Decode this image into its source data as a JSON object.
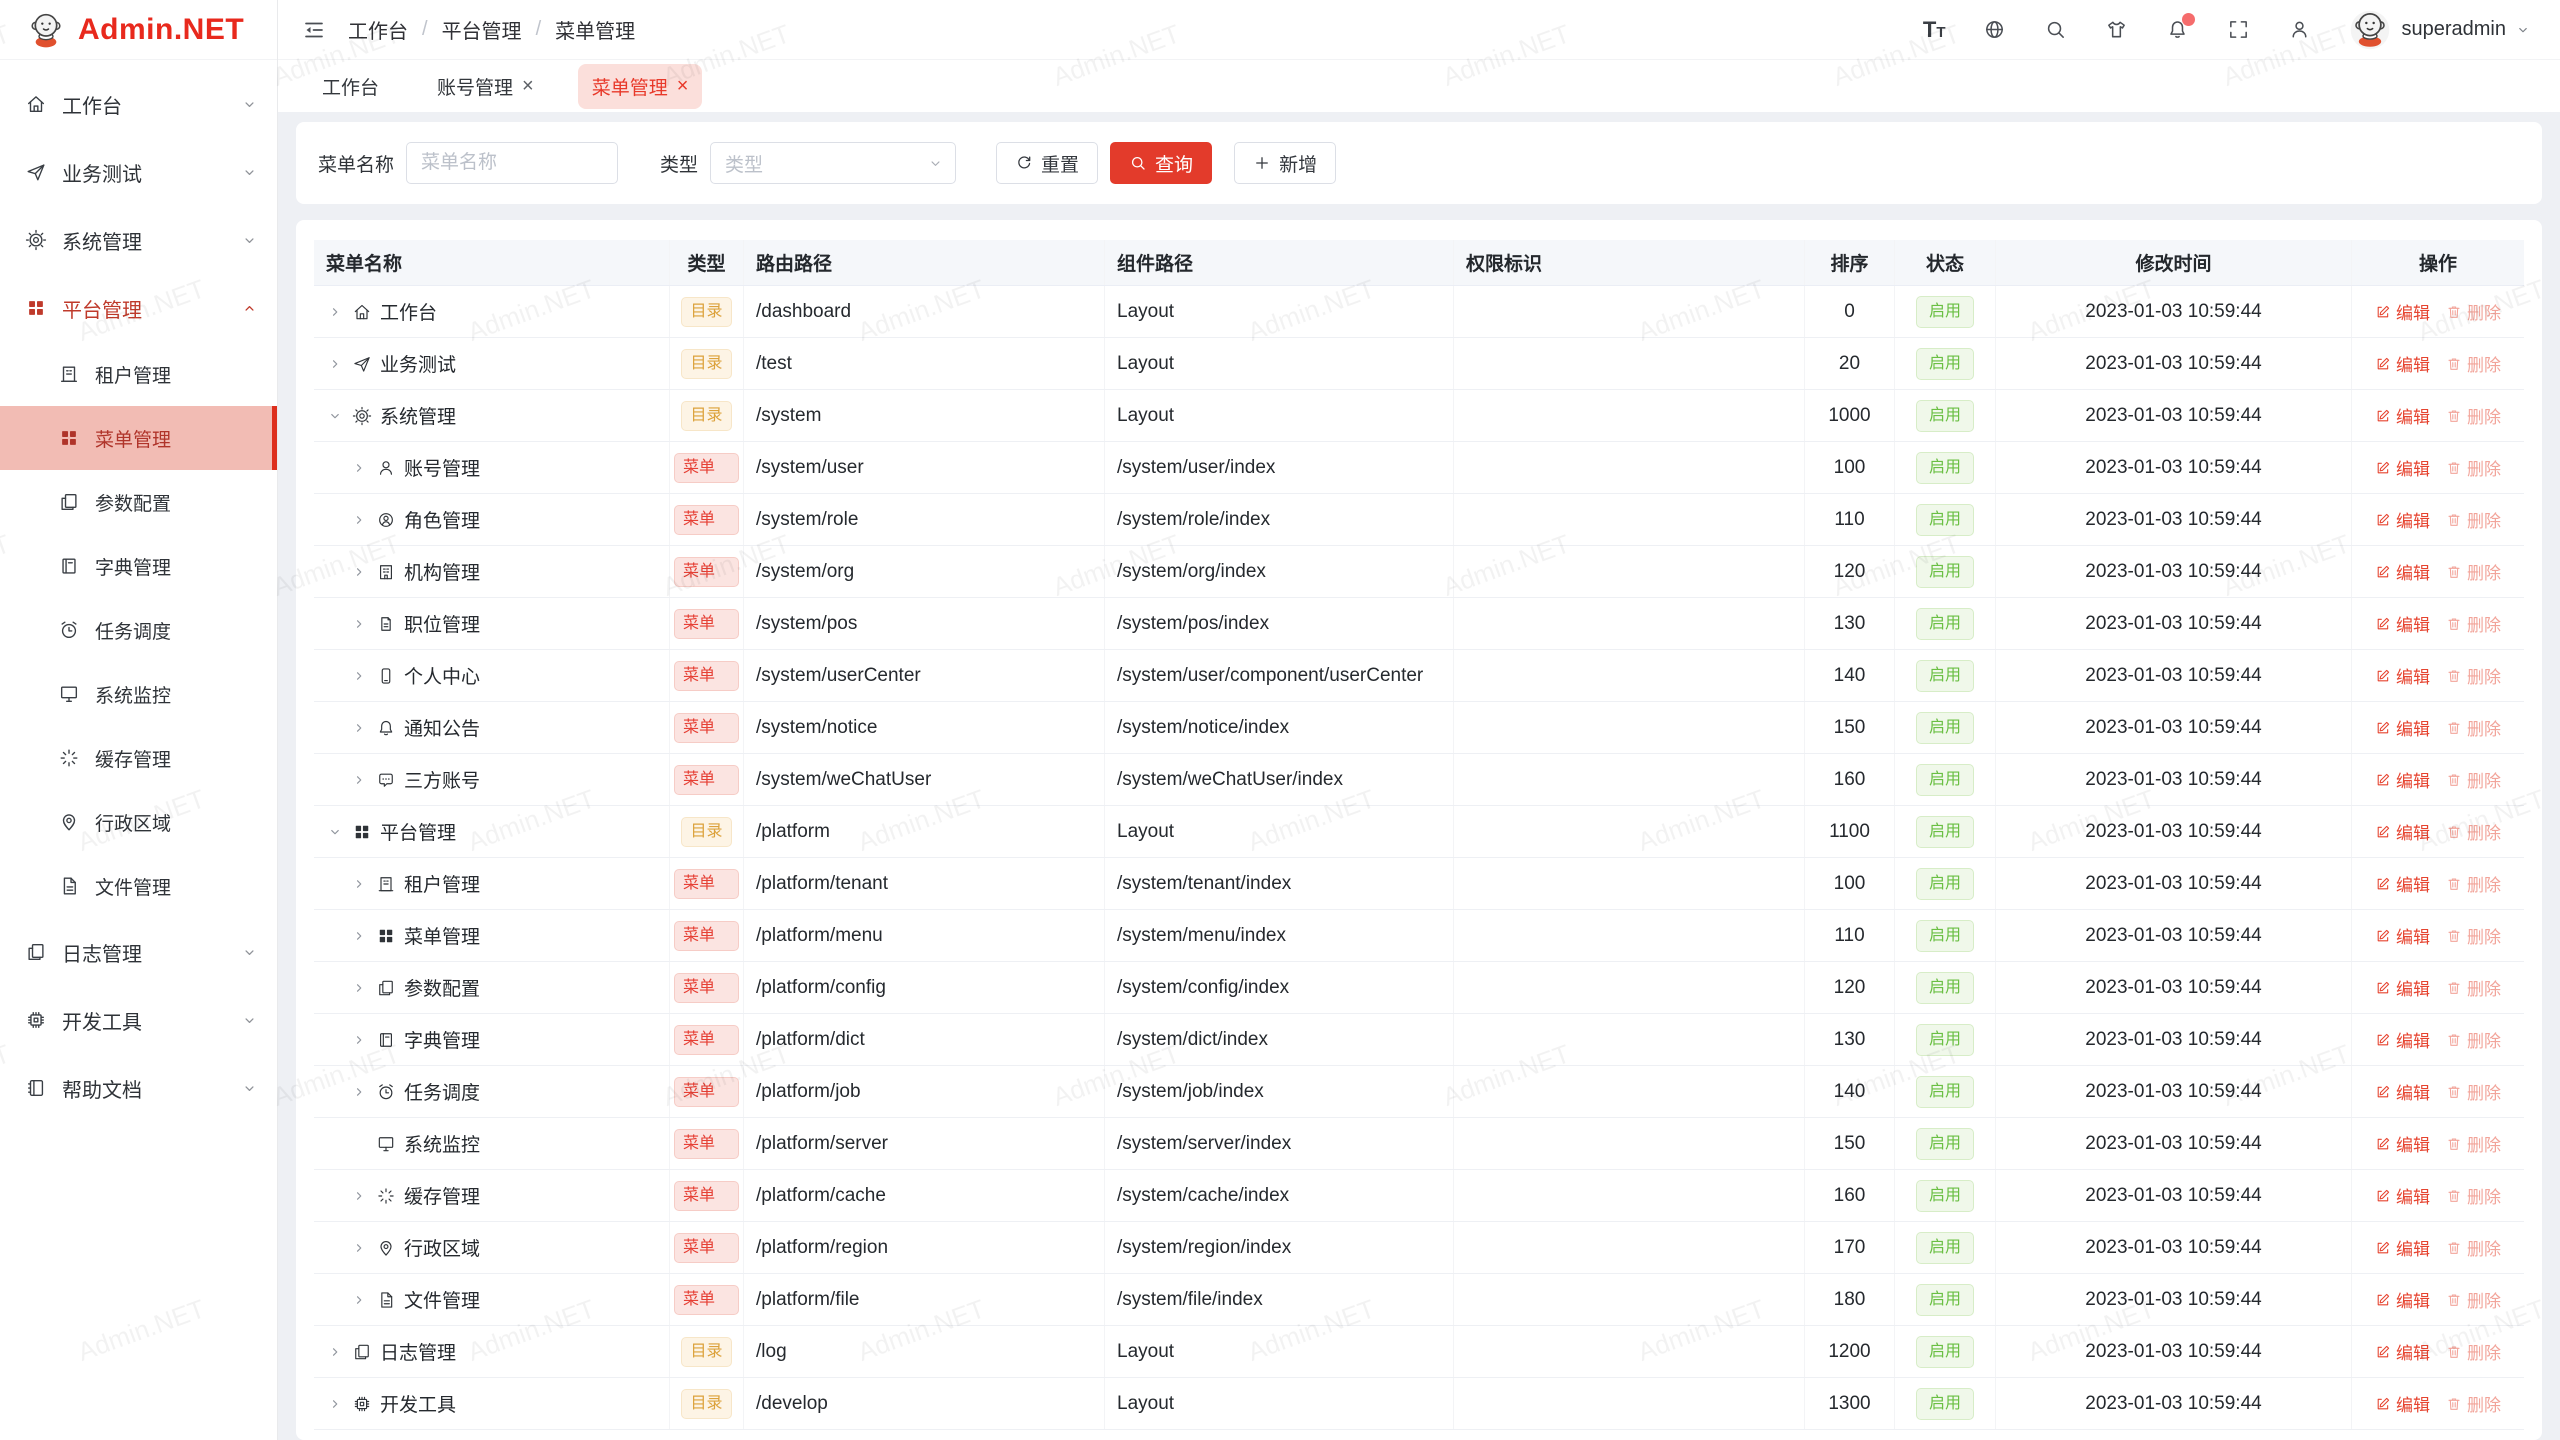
{
  "watermark": "Admin.NET",
  "logo": {
    "title": "Admin.NET"
  },
  "colors": {
    "primary_red": "#e33b2b",
    "sidebar_active_bg": "#f2bcb4",
    "tag_dir_text": "#dca23c",
    "tag_menu_text": "#e64035",
    "status_enabled_green": "#6abf43",
    "active_tab_bg": "#fbdfdb"
  },
  "sidebar": {
    "items": [
      {
        "label": "工作台",
        "icon": "home",
        "level": 1,
        "chevron": "down"
      },
      {
        "label": "业务测试",
        "icon": "send",
        "level": 1,
        "chevron": "down"
      },
      {
        "label": "系统管理",
        "icon": "gear",
        "level": 1,
        "chevron": "down"
      },
      {
        "label": "平台管理",
        "icon": "grid",
        "level": 1,
        "chevron": "up",
        "red": true
      },
      {
        "label": "租户管理",
        "icon": "tenant",
        "level": 2
      },
      {
        "label": "菜单管理",
        "icon": "grid",
        "level": 2,
        "active": true
      },
      {
        "label": "参数配置",
        "icon": "copy",
        "level": 2
      },
      {
        "label": "字典管理",
        "icon": "book",
        "level": 2
      },
      {
        "label": "任务调度",
        "icon": "alarm",
        "level": 2
      },
      {
        "label": "系统监控",
        "icon": "monitor",
        "level": 2
      },
      {
        "label": "缓存管理",
        "icon": "loading",
        "level": 2
      },
      {
        "label": "行政区域",
        "icon": "location",
        "level": 2
      },
      {
        "label": "文件管理",
        "icon": "file",
        "level": 2
      },
      {
        "label": "日志管理",
        "icon": "copy",
        "level": 1,
        "chevron": "down"
      },
      {
        "label": "开发工具",
        "icon": "cpu",
        "level": 1,
        "chevron": "down"
      },
      {
        "label": "帮助文档",
        "icon": "notebook",
        "level": 1,
        "chevron": "down"
      }
    ]
  },
  "header": {
    "breadcrumb": [
      "工作台",
      "平台管理",
      "菜单管理"
    ],
    "icons": [
      "font-size",
      "language",
      "search",
      "theme",
      "notification",
      "fullscreen",
      "user"
    ],
    "notification_badge": true,
    "user": "superadmin"
  },
  "tabs": [
    {
      "label": "工作台",
      "closable": false,
      "active": false
    },
    {
      "label": "账号管理",
      "closable": true,
      "active": false
    },
    {
      "label": "菜单管理",
      "closable": true,
      "active": true
    }
  ],
  "filters": {
    "name_label": "菜单名称",
    "name_placeholder": "菜单名称",
    "name_value": "",
    "type_label": "类型",
    "type_placeholder": "类型",
    "reset_label": "重置",
    "query_label": "查询",
    "add_label": "新增"
  },
  "table": {
    "columns": [
      "菜单名称",
      "类型",
      "路由路径",
      "组件路径",
      "权限标识",
      "排序",
      "状态",
      "修改时间",
      "操作"
    ],
    "badge_dir": "目录",
    "badge_menu": "菜单",
    "status_enabled": "启用",
    "edit_label": "编辑",
    "delete_label": "删除",
    "rows": [
      {
        "name": "工作台",
        "icon": "home",
        "level": 1,
        "expand": "right",
        "type": "dir",
        "route": "/dashboard",
        "component": "Layout",
        "permission": "",
        "sort": "0",
        "status": "启用",
        "time": "2023-01-03 10:59:44"
      },
      {
        "name": "业务测试",
        "icon": "send",
        "level": 1,
        "expand": "right",
        "type": "dir",
        "route": "/test",
        "component": "Layout",
        "permission": "",
        "sort": "20",
        "status": "启用",
        "time": "2023-01-03 10:59:44"
      },
      {
        "name": "系统管理",
        "icon": "gear",
        "level": 1,
        "expand": "down",
        "type": "dir",
        "route": "/system",
        "component": "Layout",
        "permission": "",
        "sort": "1000",
        "status": "启用",
        "time": "2023-01-03 10:59:44"
      },
      {
        "name": "账号管理",
        "icon": "user",
        "level": 2,
        "expand": "right",
        "type": "menu",
        "route": "/system/user",
        "component": "/system/user/index",
        "permission": "",
        "sort": "100",
        "status": "启用",
        "time": "2023-01-03 10:59:44"
      },
      {
        "name": "角色管理",
        "icon": "role",
        "level": 2,
        "expand": "right",
        "type": "menu",
        "route": "/system/role",
        "component": "/system/role/index",
        "permission": "",
        "sort": "110",
        "status": "启用",
        "time": "2023-01-03 10:59:44"
      },
      {
        "name": "机构管理",
        "icon": "org",
        "level": 2,
        "expand": "right",
        "type": "menu",
        "route": "/system/org",
        "component": "/system/org/index",
        "permission": "",
        "sort": "120",
        "status": "启用",
        "time": "2023-01-03 10:59:44"
      },
      {
        "name": "职位管理",
        "icon": "position",
        "level": 2,
        "expand": "right",
        "type": "menu",
        "route": "/system/pos",
        "component": "/system/pos/index",
        "permission": "",
        "sort": "130",
        "status": "启用",
        "time": "2023-01-03 10:59:44"
      },
      {
        "name": "个人中心",
        "icon": "mobile",
        "level": 2,
        "expand": "right",
        "type": "menu",
        "route": "/system/userCenter",
        "component": "/system/user/component/userCenter",
        "permission": "",
        "sort": "140",
        "status": "启用",
        "time": "2023-01-03 10:59:44"
      },
      {
        "name": "通知公告",
        "icon": "bell",
        "level": 2,
        "expand": "right",
        "type": "menu",
        "route": "/system/notice",
        "component": "/system/notice/index",
        "permission": "",
        "sort": "150",
        "status": "启用",
        "time": "2023-01-03 10:59:44"
      },
      {
        "name": "三方账号",
        "icon": "message",
        "level": 2,
        "expand": "right",
        "type": "menu",
        "route": "/system/weChatUser",
        "component": "/system/weChatUser/index",
        "permission": "",
        "sort": "160",
        "status": "启用",
        "time": "2023-01-03 10:59:44"
      },
      {
        "name": "平台管理",
        "icon": "grid",
        "level": 1,
        "expand": "down",
        "type": "dir",
        "route": "/platform",
        "component": "Layout",
        "permission": "",
        "sort": "1100",
        "status": "启用",
        "time": "2023-01-03 10:59:44"
      },
      {
        "name": "租户管理",
        "icon": "tenant",
        "level": 2,
        "expand": "right",
        "type": "menu",
        "route": "/platform/tenant",
        "component": "/system/tenant/index",
        "permission": "",
        "sort": "100",
        "status": "启用",
        "time": "2023-01-03 10:59:44"
      },
      {
        "name": "菜单管理",
        "icon": "grid",
        "level": 2,
        "expand": "right",
        "type": "menu",
        "route": "/platform/menu",
        "component": "/system/menu/index",
        "permission": "",
        "sort": "110",
        "status": "启用",
        "time": "2023-01-03 10:59:44"
      },
      {
        "name": "参数配置",
        "icon": "copy",
        "level": 2,
        "expand": "right",
        "type": "menu",
        "route": "/platform/config",
        "component": "/system/config/index",
        "permission": "",
        "sort": "120",
        "status": "启用",
        "time": "2023-01-03 10:59:44"
      },
      {
        "name": "字典管理",
        "icon": "book",
        "level": 2,
        "expand": "right",
        "type": "menu",
        "route": "/platform/dict",
        "component": "/system/dict/index",
        "permission": "",
        "sort": "130",
        "status": "启用",
        "time": "2023-01-03 10:59:44"
      },
      {
        "name": "任务调度",
        "icon": "alarm",
        "level": 2,
        "expand": "right",
        "type": "menu",
        "route": "/platform/job",
        "component": "/system/job/index",
        "permission": "",
        "sort": "140",
        "status": "启用",
        "time": "2023-01-03 10:59:44"
      },
      {
        "name": "系统监控",
        "icon": "monitor",
        "level": 2,
        "expand": "none",
        "type": "menu",
        "route": "/platform/server",
        "component": "/system/server/index",
        "permission": "",
        "sort": "150",
        "status": "启用",
        "time": "2023-01-03 10:59:44"
      },
      {
        "name": "缓存管理",
        "icon": "loading",
        "level": 2,
        "expand": "right",
        "type": "menu",
        "route": "/platform/cache",
        "component": "/system/cache/index",
        "permission": "",
        "sort": "160",
        "status": "启用",
        "time": "2023-01-03 10:59:44"
      },
      {
        "name": "行政区域",
        "icon": "location",
        "level": 2,
        "expand": "right",
        "type": "menu",
        "route": "/platform/region",
        "component": "/system/region/index",
        "permission": "",
        "sort": "170",
        "status": "启用",
        "time": "2023-01-03 10:59:44"
      },
      {
        "name": "文件管理",
        "icon": "file",
        "level": 2,
        "expand": "right",
        "type": "menu",
        "route": "/platform/file",
        "component": "/system/file/index",
        "permission": "",
        "sort": "180",
        "status": "启用",
        "time": "2023-01-03 10:59:44"
      },
      {
        "name": "日志管理",
        "icon": "copy",
        "level": 1,
        "expand": "right",
        "type": "dir",
        "route": "/log",
        "component": "Layout",
        "permission": "",
        "sort": "1200",
        "status": "启用",
        "time": "2023-01-03 10:59:44"
      },
      {
        "name": "开发工具",
        "icon": "cpu",
        "level": 1,
        "expand": "right",
        "type": "dir",
        "route": "/develop",
        "component": "Layout",
        "permission": "",
        "sort": "1300",
        "status": "启用",
        "time": "2023-01-03 10:59:44"
      }
    ]
  }
}
